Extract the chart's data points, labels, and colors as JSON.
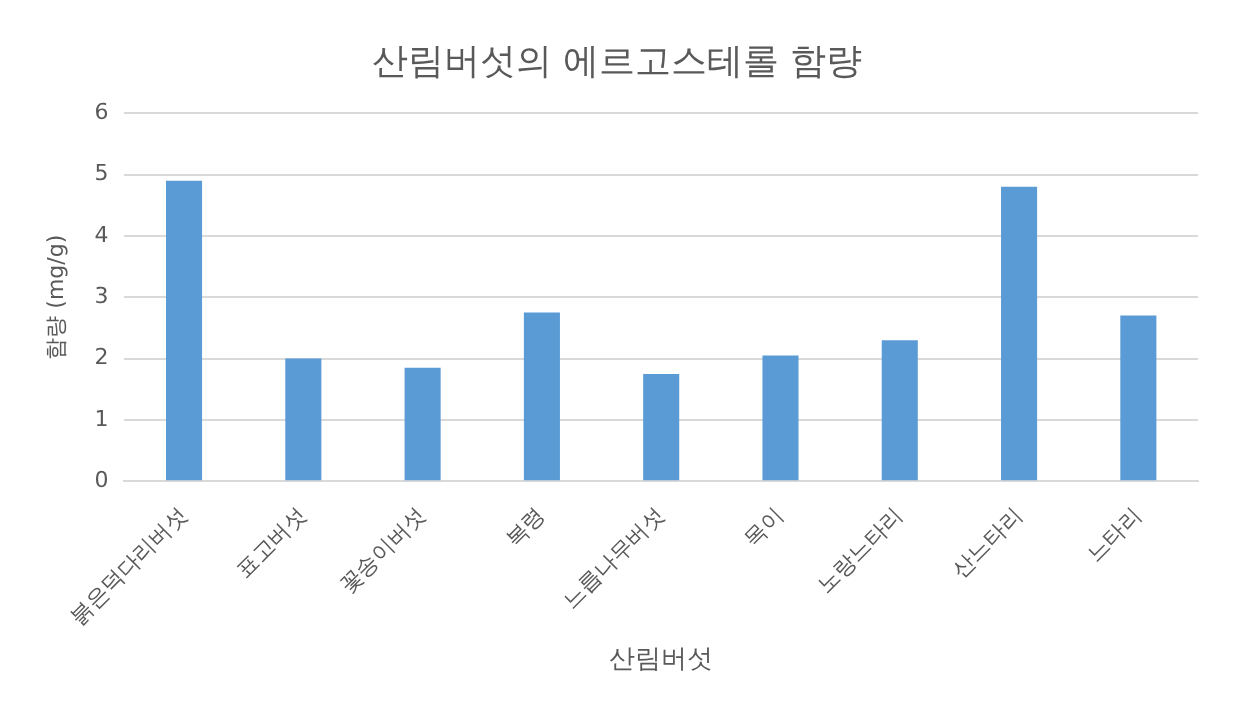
{
  "chart_data": {
    "type": "bar",
    "title": "산림버섯의 에르고스테롤 함량",
    "xlabel": "산림버섯",
    "ylabel": "함량 (mg/g)",
    "categories": [
      "붉은덕다리버섯",
      "표고버섯",
      "꽃송이버섯",
      "복령",
      "느릅나무버섯",
      "목이",
      "노랑느타리",
      "산느타리",
      "느타리"
    ],
    "values": [
      4.9,
      2.0,
      1.85,
      2.75,
      1.75,
      2.05,
      2.3,
      4.8,
      2.7
    ],
    "color": "#5b9bd5",
    "ylim": [
      0,
      6
    ],
    "yticks": [
      0,
      1,
      2,
      3,
      4,
      5,
      6
    ],
    "grid": "y",
    "legend": false
  }
}
